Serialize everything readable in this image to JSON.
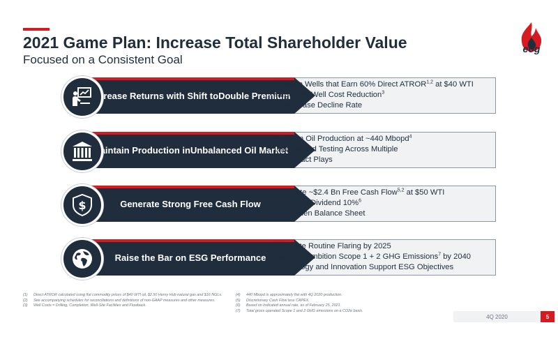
{
  "header": {
    "title": "2021 Game Plan: Increase Total Shareholder Value",
    "subtitle": "Focused on a Consistent Goal",
    "logo_text": "eog"
  },
  "colors": {
    "navy": "#1f2d3d",
    "red": "#d71920",
    "panel": "#f1f2f4"
  },
  "rows": [
    {
      "icon": "presentation-chart-icon",
      "label_line1": "Increase Returns with Shift to",
      "label_line2": "Double Premium",
      "bullets": [
        {
          "text": "-  Develop Wells that Earn 60% Direct ATROR",
          "sup": "1,2",
          "after": " at $40 WTI"
        },
        {
          "text": "-  Target 5% Well Cost Reduction",
          "sup": "3",
          "after": ""
        },
        {
          "text": "-  Lower Base Decline Rate",
          "sup": "",
          "after": ""
        }
      ]
    },
    {
      "icon": "columns-building-icon",
      "label_line1": "Maintain Production in",
      "label_line2": "Unbalanced Oil Market",
      "bullets": [
        {
          "text": "-  Maintain Oil Production at ~440 Mbopd",
          "sup": "4",
          "after": ""
        },
        {
          "text": "-  Leasing and Testing Across Multiple",
          "sup": "",
          "after": ""
        },
        {
          "text": "   High-Impact Plays",
          "sup": "",
          "after": ""
        }
      ]
    },
    {
      "icon": "dollar-shield-icon",
      "label_line1": "Generate Strong Free Cash Flow",
      "label_line2": "",
      "bullets": [
        {
          "text": "-  Generate ~$2.4 Bn Free Cash Flow",
          "sup": "5,2",
          "after": " at $50 WTI"
        },
        {
          "text": "-  Increased Dividend 10%",
          "sup": "6",
          "after": ""
        },
        {
          "text": "-  Strengthen Balance Sheet",
          "sup": "",
          "after": ""
        }
      ]
    },
    {
      "icon": "globe-icon",
      "label_line1": "Raise the Bar on ESG Performance",
      "label_line2": "",
      "bullets": [
        {
          "text": "-  Eliminate Routine Flaring by 2025",
          "sup": "",
          "after": ""
        },
        {
          "text": "-  Net Zero Ambition Scope 1 + 2 GHG Emissions",
          "sup": "7",
          "after": " by 2040"
        },
        {
          "text": "-  Technology and Innovation Support ESG Objectives",
          "sup": "",
          "after": ""
        }
      ]
    }
  ],
  "footnotes_left": [
    {
      "num": "(1)",
      "text": "Direct ATROR calculated using flat commodity prices of $40 WTI oil, $2.50 Henry Hub natural gas and $16 NGLs."
    },
    {
      "num": "(2)",
      "text": "See accompanying schedules for reconciliations and definitions of non-GAAP measures and other measures."
    },
    {
      "num": "(3)",
      "text": "Well Costs = Drilling, Completion, Well-Site Facilities and Flowback."
    }
  ],
  "footnotes_right": [
    {
      "num": "(4)",
      "text": "440 Mbopd is approximately flat with 4Q 2020 production."
    },
    {
      "num": "(5)",
      "text": "Discretionary Cash Flow less CAPEX."
    },
    {
      "num": "(6)",
      "text": "Based on indicated annual rate, as of February 25, 2021."
    },
    {
      "num": "(7)",
      "text": "Total gross operated Scope 1 and 2 GHG emissions on a CO2e basis."
    }
  ],
  "footer": {
    "quarter": "4Q 2020",
    "page": "5"
  }
}
